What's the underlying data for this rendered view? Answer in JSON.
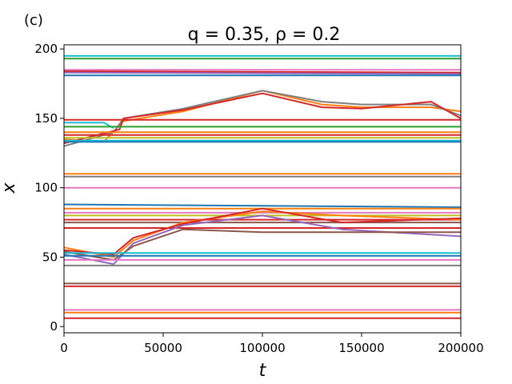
{
  "panel_label": "(c)",
  "chart_data": {
    "type": "line",
    "title": "q = 0.35, ρ = 0.2",
    "xlabel": "t",
    "ylabel": "x",
    "xlim": [
      0,
      200000
    ],
    "ylim": [
      0,
      200
    ],
    "x_ticks": [
      0,
      50000,
      100000,
      150000,
      200000
    ],
    "x_tick_labels": [
      "0",
      "50000",
      "100000",
      "150000",
      "200000"
    ],
    "y_ticks": [
      0,
      50,
      100,
      150,
      200
    ],
    "y_tick_labels": [
      "0",
      "50",
      "100",
      "150",
      "200"
    ],
    "grid": false,
    "legend": "none",
    "series": [
      {
        "color": "#17becf",
        "values": [
          [
            0,
            195
          ],
          [
            200000,
            195
          ]
        ]
      },
      {
        "color": "#2ca02c",
        "values": [
          [
            0,
            193
          ],
          [
            200000,
            193
          ]
        ]
      },
      {
        "color": "#e377c2",
        "values": [
          [
            0,
            185
          ],
          [
            200000,
            185
          ]
        ]
      },
      {
        "color": "#d62728",
        "values": [
          [
            0,
            184
          ],
          [
            200000,
            183
          ]
        ]
      },
      {
        "color": "#9467bd",
        "values": [
          [
            0,
            183
          ],
          [
            200000,
            182
          ]
        ]
      },
      {
        "color": "#1f77b4",
        "values": [
          [
            0,
            181
          ],
          [
            200000,
            181
          ]
        ]
      },
      {
        "color": "#ff7f0e",
        "values": [
          [
            0,
            135
          ],
          [
            20000,
            133
          ],
          [
            30000,
            148
          ],
          [
            60000,
            155
          ],
          [
            100000,
            170
          ],
          [
            130000,
            160
          ],
          [
            150000,
            158
          ],
          [
            185000,
            158
          ],
          [
            200000,
            155
          ]
        ]
      },
      {
        "color": "#7f7f7f",
        "values": [
          [
            0,
            130
          ],
          [
            25000,
            140
          ],
          [
            30000,
            150
          ],
          [
            60000,
            157
          ],
          [
            100000,
            170
          ],
          [
            130000,
            162
          ],
          [
            150000,
            160
          ],
          [
            185000,
            160
          ],
          [
            200000,
            152
          ]
        ]
      },
      {
        "color": "#d62728",
        "values": [
          [
            0,
            132
          ],
          [
            28000,
            142
          ],
          [
            30000,
            150
          ],
          [
            60000,
            156
          ],
          [
            100000,
            168
          ],
          [
            130000,
            158
          ],
          [
            150000,
            157
          ],
          [
            185000,
            162
          ],
          [
            200000,
            150
          ]
        ]
      },
      {
        "color": "#d62728",
        "values": [
          [
            0,
            149
          ],
          [
            200000,
            149
          ]
        ]
      },
      {
        "color": "#17becf",
        "values": [
          [
            0,
            147
          ],
          [
            20000,
            147
          ],
          [
            25000,
            143
          ]
        ]
      },
      {
        "color": "#2ca02c",
        "values": [
          [
            0,
            144
          ],
          [
            200000,
            144
          ]
        ]
      },
      {
        "color": "#ff7f0e",
        "values": [
          [
            0,
            140
          ],
          [
            200000,
            140
          ]
        ]
      },
      {
        "color": "#d62728",
        "values": [
          [
            0,
            138
          ],
          [
            200000,
            138
          ]
        ]
      },
      {
        "color": "#bcbd22",
        "values": [
          [
            0,
            136
          ],
          [
            200000,
            136
          ]
        ]
      },
      {
        "color": "#17becf",
        "values": [
          [
            0,
            134
          ],
          [
            200000,
            134
          ]
        ]
      },
      {
        "color": "#1f77b4",
        "values": [
          [
            0,
            133
          ],
          [
            200000,
            133
          ]
        ]
      },
      {
        "color": "#ff7f0e",
        "values": [
          [
            0,
            110
          ],
          [
            200000,
            110
          ]
        ]
      },
      {
        "color": "#7f7f7f",
        "values": [
          [
            0,
            108
          ],
          [
            200000,
            108
          ]
        ]
      },
      {
        "color": "#e377c2",
        "values": [
          [
            0,
            100
          ],
          [
            200000,
            100
          ]
        ]
      },
      {
        "color": "#1f77b4",
        "values": [
          [
            0,
            88
          ],
          [
            100000,
            87
          ],
          [
            200000,
            86
          ]
        ]
      },
      {
        "color": "#ff7f0e",
        "values": [
          [
            0,
            85
          ],
          [
            200000,
            85
          ]
        ]
      },
      {
        "color": "#e377c2",
        "values": [
          [
            0,
            82
          ],
          [
            200000,
            82
          ]
        ]
      },
      {
        "color": "#bcbd22",
        "values": [
          [
            0,
            80
          ],
          [
            200000,
            80
          ]
        ]
      },
      {
        "color": "#d62728",
        "values": [
          [
            0,
            77
          ],
          [
            200000,
            77
          ]
        ]
      },
      {
        "color": "#8c564b",
        "values": [
          [
            0,
            75
          ],
          [
            200000,
            75
          ]
        ]
      },
      {
        "color": "#d62728",
        "values": [
          [
            0,
            71
          ],
          [
            200000,
            71
          ]
        ]
      },
      {
        "color": "#ff7f0e",
        "values": [
          [
            0,
            57
          ],
          [
            25000,
            50
          ],
          [
            35000,
            62
          ],
          [
            60000,
            75
          ],
          [
            100000,
            83
          ],
          [
            140000,
            80
          ],
          [
            200000,
            77
          ]
        ]
      },
      {
        "color": "#d62728",
        "values": [
          [
            0,
            55
          ],
          [
            25000,
            52
          ],
          [
            35000,
            64
          ],
          [
            60000,
            74
          ],
          [
            100000,
            85
          ],
          [
            140000,
            75
          ],
          [
            200000,
            78
          ]
        ]
      },
      {
        "color": "#9467bd",
        "values": [
          [
            0,
            52
          ],
          [
            25000,
            45
          ],
          [
            35000,
            60
          ],
          [
            60000,
            73
          ],
          [
            100000,
            80
          ],
          [
            140000,
            70
          ],
          [
            200000,
            65
          ]
        ]
      },
      {
        "color": "#8c564b",
        "values": [
          [
            0,
            54
          ],
          [
            25000,
            48
          ],
          [
            35000,
            58
          ],
          [
            60000,
            70
          ],
          [
            100000,
            68
          ],
          [
            200000,
            68
          ]
        ]
      },
      {
        "color": "#17becf",
        "values": [
          [
            0,
            53
          ],
          [
            200000,
            53
          ]
        ]
      },
      {
        "color": "#1f77b4",
        "values": [
          [
            0,
            51
          ],
          [
            200000,
            51
          ]
        ]
      },
      {
        "color": "#e377c2",
        "values": [
          [
            0,
            48
          ],
          [
            200000,
            48
          ]
        ]
      },
      {
        "color": "#7f7f7f",
        "values": [
          [
            0,
            44
          ],
          [
            200000,
            44
          ]
        ]
      },
      {
        "color": "#8c564b",
        "values": [
          [
            0,
            31
          ],
          [
            200000,
            31
          ]
        ]
      },
      {
        "color": "#d62728",
        "values": [
          [
            0,
            29
          ],
          [
            200000,
            29
          ]
        ]
      },
      {
        "color": "#e377c2",
        "values": [
          [
            0,
            12
          ],
          [
            200000,
            12
          ]
        ]
      },
      {
        "color": "#ff7f0e",
        "values": [
          [
            0,
            10
          ],
          [
            200000,
            10
          ]
        ]
      },
      {
        "color": "#d62728",
        "values": [
          [
            0,
            6
          ],
          [
            200000,
            6
          ]
        ]
      }
    ]
  }
}
